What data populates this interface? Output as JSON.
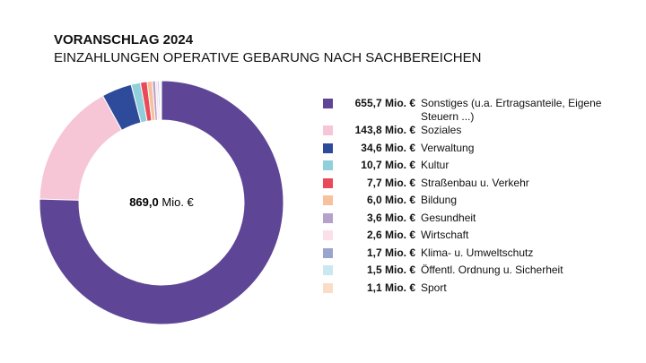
{
  "chart_data": {
    "type": "donut",
    "title": "VORANSCHLAG 2024",
    "subtitle": "EINZAHLUNGEN OPERATIVE GEBARUNG NACH SACHBEREICHEN",
    "center_value": "869,0",
    "center_unit": "Mio. €",
    "categories": [
      "Sonstiges (u.a. Ertragsanteile, Eigene Steuern ...)",
      "Soziales",
      "Verwaltung",
      "Kultur",
      "Straßenbau u. Verkehr",
      "Bildung",
      "Gesundheit",
      "Wirtschaft",
      "Klima- u. Umweltschutz",
      "Öffentl. Ordnung u. Sicherheit",
      "Sport"
    ],
    "values": [
      655.7,
      143.8,
      34.6,
      10.7,
      7.7,
      6.0,
      3.6,
      2.6,
      1.7,
      1.5,
      1.1
    ],
    "value_labels": [
      "655,7 Mio. €",
      "143,8 Mio. €",
      "34,6 Mio. €",
      "10,7 Mio. €",
      "7,7 Mio. €",
      "6,0 Mio. €",
      "3,6 Mio. €",
      "2,6 Mio. €",
      "1,7 Mio. €",
      "1,5 Mio. €",
      "1,1 Mio. €"
    ],
    "colors": [
      "#5e4596",
      "#f6c6d7",
      "#2e4a9a",
      "#8fd0dc",
      "#e84a5a",
      "#f7c19d",
      "#b6a0cc",
      "#fbe0ea",
      "#9aa4cf",
      "#c9e8f0",
      "#fbdcc6"
    ]
  }
}
